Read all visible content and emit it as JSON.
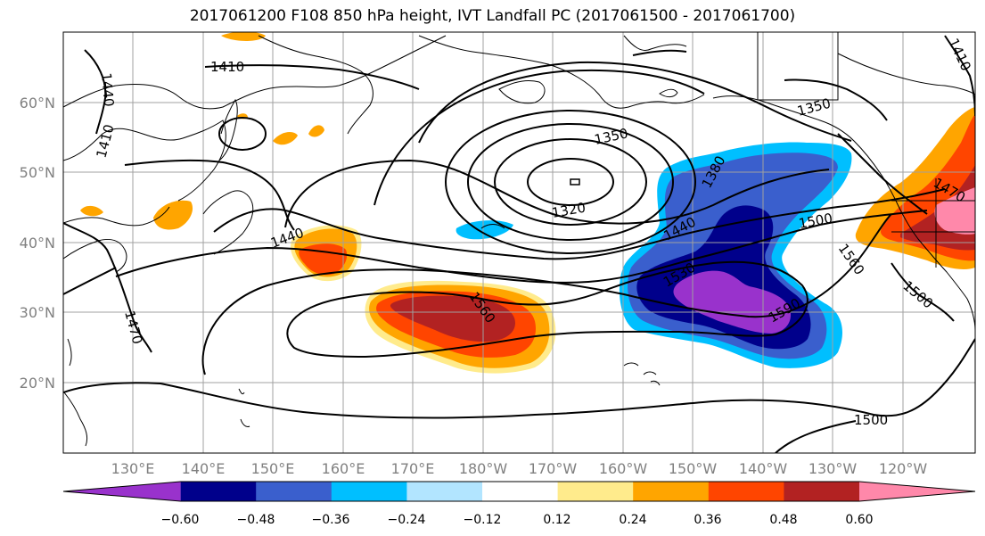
{
  "title": "2017061200 F108 850 hPa height, IVT Landfall PC (2017061500 - 2017061700)",
  "lat_labels": [
    "60°N",
    "50°N",
    "40°N",
    "30°N",
    "20°N"
  ],
  "lon_labels": [
    "130°E",
    "140°E",
    "150°E",
    "160°E",
    "170°E",
    "180°W",
    "170°W",
    "160°W",
    "150°W",
    "140°W",
    "130°W",
    "120°W"
  ],
  "contour_labels": [
    "1410",
    "1440",
    "1410",
    "1440",
    "1470",
    "1350",
    "1320",
    "1380",
    "1440",
    "1500",
    "1530",
    "1560",
    "1560",
    "1590",
    "1500",
    "1500",
    "1350",
    "1410",
    "1470"
  ],
  "colorbar": {
    "colors": [
      "#9932cc",
      "#00008b",
      "#3a5fcd",
      "#00bfff",
      "#b2e5ff",
      "#ffffff",
      "#ffeb8c",
      "#ffa500",
      "#ff4500",
      "#b22222",
      "#ff88aa"
    ],
    "tick_labels": [
      "−0.60",
      "−0.48",
      "−0.36",
      "−0.24",
      "−0.12",
      "0.12",
      "0.24",
      "0.36",
      "0.48",
      "0.60"
    ]
  }
}
